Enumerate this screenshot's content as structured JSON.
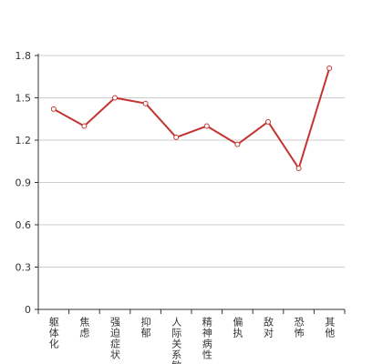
{
  "chart_data": {
    "type": "line",
    "categories": [
      "躯体化",
      "焦虑",
      "强迫症状",
      "抑郁",
      "人际关系敏感",
      "精神病性",
      "偏执",
      "敌对",
      "恐怖",
      "其他"
    ],
    "values": [
      1.42,
      1.3,
      1.5,
      1.46,
      1.22,
      1.3,
      1.17,
      1.33,
      1.0,
      1.71
    ],
    "color": "#c23531",
    "ylim": [
      0,
      1.8
    ],
    "yticks": [
      0,
      0.3,
      0.6,
      0.9,
      1.2,
      1.5,
      1.8
    ],
    "grid": true
  }
}
